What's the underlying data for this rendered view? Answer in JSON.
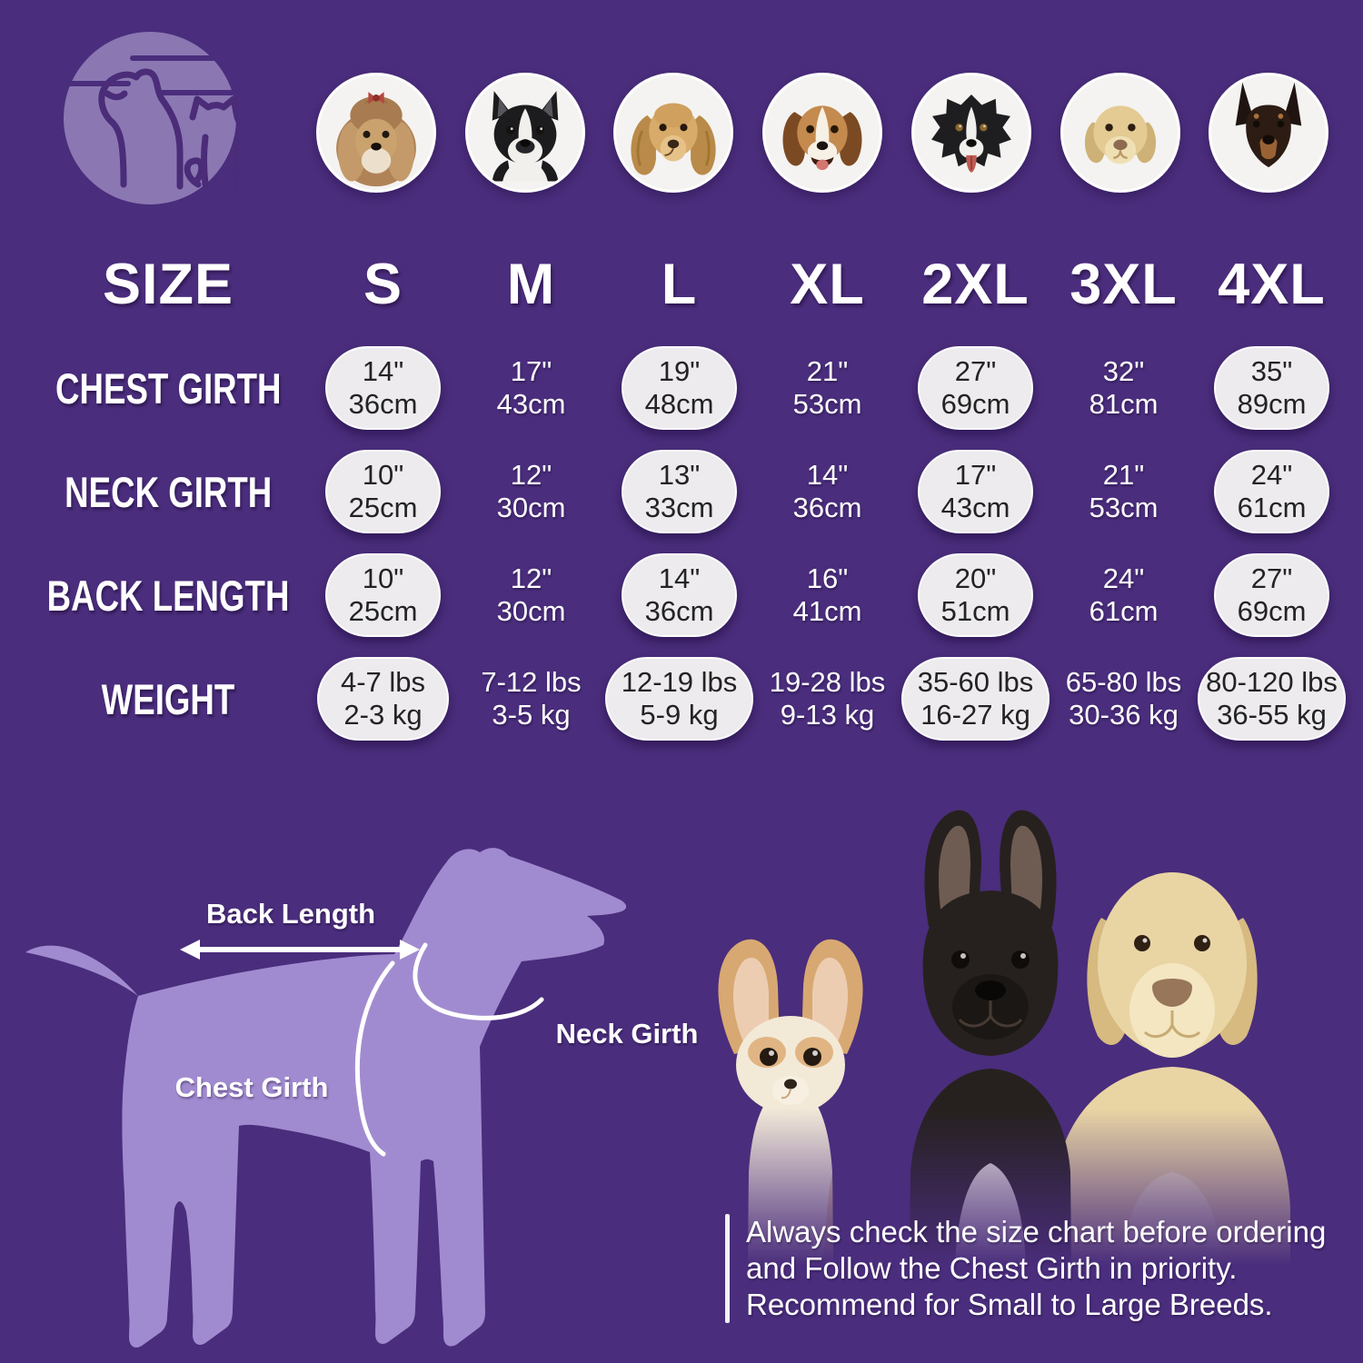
{
  "colors": {
    "background": "#4a2d7c",
    "silhouette": "#a18bd0",
    "pill_fill": "#edebee",
    "pill_text": "#232323",
    "text": "#ffffff"
  },
  "logo": {
    "name": "dog-and-cat-brand-logo"
  },
  "breed_photos": [
    "Shih Tzu",
    "Boston Terrier",
    "Cocker Spaniel",
    "Beagle",
    "Border Collie",
    "Labrador Retriever",
    "Doberman"
  ],
  "size_chart": {
    "corner_label": "SIZE",
    "columns": [
      "S",
      "M",
      "L",
      "XL",
      "2XL",
      "3XL",
      "4XL"
    ],
    "rows": [
      {
        "label": "CHEST GIRTH",
        "values": [
          [
            "14\"",
            "36cm"
          ],
          [
            "17\"",
            "43cm"
          ],
          [
            "19\"",
            "48cm"
          ],
          [
            "21\"",
            "53cm"
          ],
          [
            "27\"",
            "69cm"
          ],
          [
            "32\"",
            "81cm"
          ],
          [
            "35\"",
            "89cm"
          ]
        ]
      },
      {
        "label": "NECK GIRTH",
        "values": [
          [
            "10\"",
            "25cm"
          ],
          [
            "12\"",
            "30cm"
          ],
          [
            "13\"",
            "33cm"
          ],
          [
            "14\"",
            "36cm"
          ],
          [
            "17\"",
            "43cm"
          ],
          [
            "21\"",
            "53cm"
          ],
          [
            "24\"",
            "61cm"
          ]
        ]
      },
      {
        "label": "BACK LENGTH",
        "values": [
          [
            "10\"",
            "25cm"
          ],
          [
            "12\"",
            "30cm"
          ],
          [
            "14\"",
            "36cm"
          ],
          [
            "16\"",
            "41cm"
          ],
          [
            "20\"",
            "51cm"
          ],
          [
            "24\"",
            "61cm"
          ],
          [
            "27\"",
            "69cm"
          ]
        ]
      },
      {
        "label": "WEIGHT",
        "values": [
          [
            "4-7 lbs",
            "2-3 kg"
          ],
          [
            "7-12 lbs",
            "3-5 kg"
          ],
          [
            "12-19 lbs",
            "5-9 kg"
          ],
          [
            "19-28 lbs",
            "9-13 kg"
          ],
          [
            "35-60 lbs",
            "16-27 kg"
          ],
          [
            "65-80 lbs",
            "30-36 kg"
          ],
          [
            "80-120 lbs",
            "36-55 kg"
          ]
        ]
      }
    ]
  },
  "diagram": {
    "back_length_label": "Back Length",
    "neck_girth_label": "Neck Girth",
    "chest_girth_label": "Chest Girth"
  },
  "note": {
    "lines": [
      "Always check the size chart before ordering",
      "and Follow the Chest Girth in priority.",
      "Recommend for Small to Large Breeds."
    ]
  }
}
